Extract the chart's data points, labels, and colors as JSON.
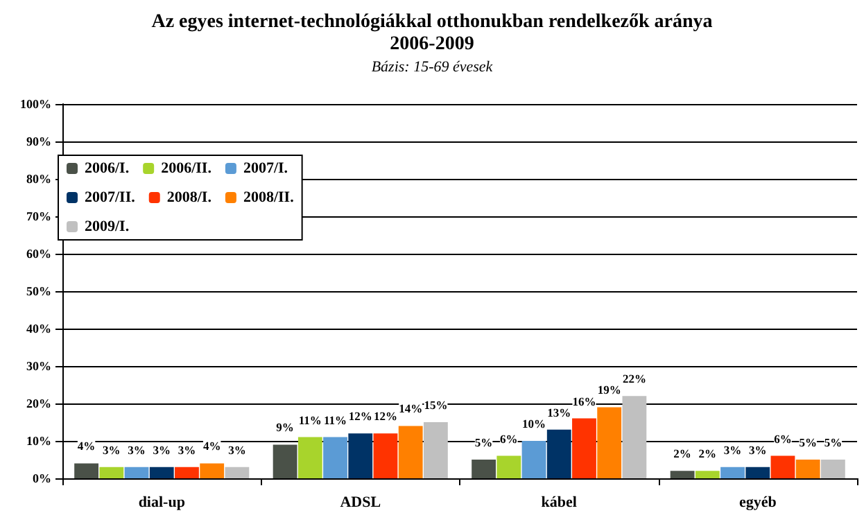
{
  "chart_data": {
    "type": "bar",
    "title": "Az egyes internet-technológiákkal otthonukban rendelkezők aránya\n2006-2009",
    "subtitle": "Bázis: 15-69 évesek",
    "categories": [
      "dial-up",
      "ADSL",
      "kábel",
      "egyéb"
    ],
    "series": [
      {
        "name": "2006/I.",
        "color": "#4a5148",
        "values": [
          4,
          9,
          5,
          2
        ],
        "value_labels": [
          "4%",
          "9%",
          "5%",
          "2%"
        ]
      },
      {
        "name": "2006/II.",
        "color": "#a8d42c",
        "values": [
          3,
          11,
          6,
          2
        ],
        "value_labels": [
          "3%",
          "11%",
          "6%",
          "2%"
        ]
      },
      {
        "name": "2007/I.",
        "color": "#5b9bd5",
        "values": [
          3,
          11,
          10,
          3
        ],
        "value_labels": [
          "3%",
          "11%",
          "10%",
          "3%"
        ]
      },
      {
        "name": "2007/II.",
        "color": "#003366",
        "values": [
          3,
          12,
          13,
          3
        ],
        "value_labels": [
          "3%",
          "12%",
          "13%",
          "3%"
        ]
      },
      {
        "name": "2008/I.",
        "color": "#ff3300",
        "values": [
          3,
          12,
          16,
          6
        ],
        "value_labels": [
          "3%",
          "12%",
          "16%",
          "6%"
        ]
      },
      {
        "name": "2008/II.",
        "color": "#ff8000",
        "values": [
          4,
          14,
          19,
          5
        ],
        "value_labels": [
          "4%",
          "14%",
          "19%",
          "5%"
        ]
      },
      {
        "name": "2009/I.",
        "color": "#c0c0c0",
        "values": [
          3,
          15,
          22,
          5
        ],
        "value_labels": [
          "3%",
          "15%",
          "22%",
          "5%"
        ]
      }
    ],
    "ylim": [
      0,
      100
    ],
    "yticks": [
      {
        "value": 0,
        "label": "0%"
      },
      {
        "value": 10,
        "label": "10%"
      },
      {
        "value": 20,
        "label": "20%"
      },
      {
        "value": 30,
        "label": "30%"
      },
      {
        "value": 40,
        "label": "40%"
      },
      {
        "value": 50,
        "label": "50%"
      },
      {
        "value": 60,
        "label": "60%"
      },
      {
        "value": 70,
        "label": "70%"
      },
      {
        "value": 80,
        "label": "80%"
      },
      {
        "value": 90,
        "label": "90%"
      },
      {
        "value": 100,
        "label": "100%"
      }
    ],
    "grid": "y",
    "legend": "top left"
  }
}
